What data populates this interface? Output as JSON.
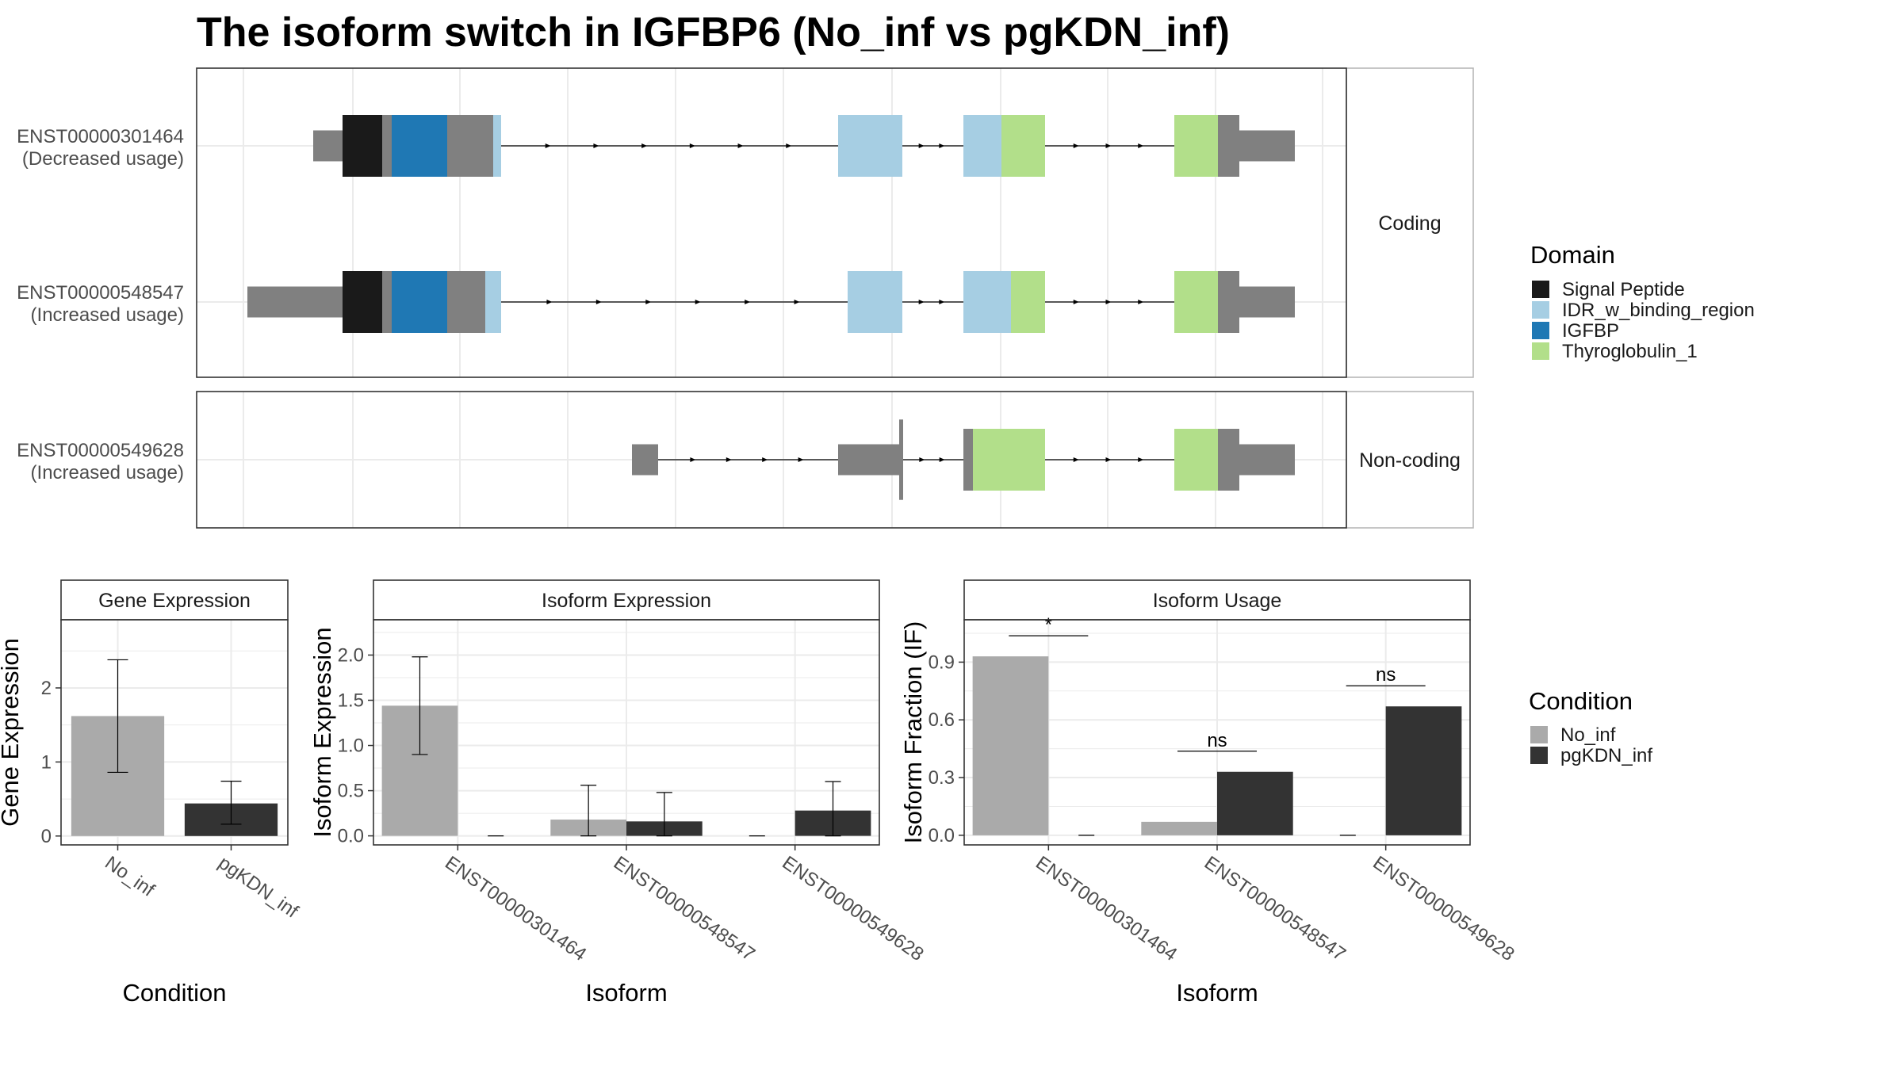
{
  "title": "The isoform switch in IGFBP6 (No_inf vs pgKDN_inf)",
  "structure": {
    "facets": [
      "Coding",
      "Non-coding"
    ],
    "isoforms": [
      {
        "name": "ENST00000301464",
        "note": "(Decreased usage)",
        "facet": "Coding"
      },
      {
        "name": "ENST00000548547",
        "note": "(Increased usage)",
        "facet": "Coding"
      },
      {
        "name": "ENST00000549628",
        "note": "(Increased usage)",
        "facet": "Non-coding"
      }
    ],
    "colors": {
      "intron": "#000000",
      "exon": "#808080"
    }
  },
  "domain_legend": {
    "title": "Domain",
    "items": [
      {
        "label": "Signal Peptide",
        "color": "#1a1a1a"
      },
      {
        "label": "IDR_w_binding_region",
        "color": "#a6cee3"
      },
      {
        "label": "IGFBP",
        "color": "#1f78b4"
      },
      {
        "label": "Thyroglobulin_1",
        "color": "#b2df8a"
      }
    ]
  },
  "condition_legend": {
    "title": "Condition",
    "items": [
      {
        "label": "No_inf",
        "color": "#aaaaaa"
      },
      {
        "label": "pgKDN_inf",
        "color": "#333333"
      }
    ]
  },
  "chart_data": [
    {
      "type": "bar",
      "title": "Gene Expression",
      "xlabel": "Condition",
      "ylabel": "Gene Expression",
      "categories": [
        "No_inf",
        "pgKDN_inf"
      ],
      "values": [
        1.62,
        0.44
      ],
      "error": [
        [
          0.86,
          2.38
        ],
        [
          0.16,
          0.74
        ]
      ],
      "colors": [
        "#aaaaaa",
        "#333333"
      ],
      "ylim": [
        -0.12,
        2.92
      ],
      "yticks": [
        0,
        1,
        2
      ]
    },
    {
      "type": "bar",
      "title": "Isoform Expression",
      "xlabel": "Isoform",
      "ylabel": "Isoform Expression",
      "categories": [
        "ENST00000301464",
        "ENST00000548547",
        "ENST00000549628"
      ],
      "series": [
        {
          "name": "No_inf",
          "values": [
            1.44,
            0.18,
            0.0
          ],
          "error": [
            [
              0.9,
              1.98
            ],
            [
              0.0,
              0.56
            ],
            [
              0.0,
              0.0
            ]
          ]
        },
        {
          "name": "pgKDN_inf",
          "values": [
            0.0,
            0.16,
            0.28
          ],
          "error": [
            [
              0.0,
              0.0
            ],
            [
              0.0,
              0.48
            ],
            [
              0.0,
              0.6
            ]
          ]
        }
      ],
      "ylim": [
        -0.1,
        2.39
      ],
      "yticks": [
        0.0,
        0.5,
        1.0,
        1.5,
        2.0
      ]
    },
    {
      "type": "bar",
      "title": "Isoform Usage",
      "xlabel": "Isoform",
      "ylabel": "Isoform Fraction (IF)",
      "categories": [
        "ENST00000301464",
        "ENST00000548547",
        "ENST00000549628"
      ],
      "series": [
        {
          "name": "No_inf",
          "values": [
            0.93,
            0.07,
            0.0
          ]
        },
        {
          "name": "pgKDN_inf",
          "values": [
            0.0,
            0.33,
            0.67
          ]
        }
      ],
      "significance": [
        "*",
        "ns",
        "ns"
      ],
      "ylim": [
        -0.05,
        1.12
      ],
      "yticks": [
        0.0,
        0.3,
        0.6,
        0.9
      ]
    }
  ]
}
